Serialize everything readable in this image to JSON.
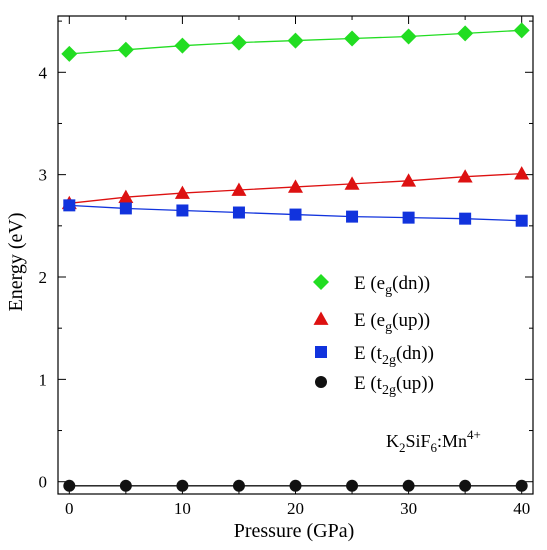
{
  "chart_data": {
    "type": "scatter",
    "xlabel": "Pressure (GPa)",
    "ylabel": "Energy (eV)",
    "xlim": [
      -1,
      41
    ],
    "ylim": [
      -0.12,
      4.55
    ],
    "xticks": [
      0,
      10,
      20,
      30,
      40
    ],
    "yticks": [
      0,
      1,
      2,
      3,
      4
    ],
    "grid": false,
    "legend_position": "center-right",
    "x": [
      0,
      5,
      10,
      15,
      20,
      25,
      30,
      35,
      40
    ],
    "series": [
      {
        "key": "eg_dn",
        "legend": {
          "base": "E (e",
          "sub": "g",
          "tail": "(dn))"
        },
        "marker": "diamond",
        "color": "#22dd22",
        "values": [
          4.18,
          4.22,
          4.26,
          4.29,
          4.31,
          4.33,
          4.35,
          4.38,
          4.41
        ]
      },
      {
        "key": "eg_up",
        "legend": {
          "base": "E (e",
          "sub": "g",
          "tail": "(up))"
        },
        "marker": "triangle",
        "color": "#dd1111",
        "values": [
          2.72,
          2.78,
          2.82,
          2.85,
          2.88,
          2.91,
          2.94,
          2.98,
          3.01
        ]
      },
      {
        "key": "t2g_dn",
        "legend": {
          "base": "E (t",
          "sub": "2g",
          "tail": "(dn))"
        },
        "marker": "square",
        "color": "#1133dd",
        "values": [
          2.7,
          2.67,
          2.65,
          2.63,
          2.61,
          2.59,
          2.58,
          2.57,
          2.55
        ]
      },
      {
        "key": "t2g_up",
        "legend": {
          "base": "E (t",
          "sub": "2g",
          "tail": "(up))"
        },
        "marker": "circle",
        "color": "#111111",
        "values": [
          -0.04,
          -0.04,
          -0.04,
          -0.04,
          -0.04,
          -0.04,
          -0.04,
          -0.04,
          -0.04
        ]
      }
    ],
    "annotation": {
      "k": "K",
      "k_sub": "2",
      "sif": "SiF",
      "sif_sub": "6",
      "mn": ":Mn",
      "mn_sup": "4+"
    }
  }
}
